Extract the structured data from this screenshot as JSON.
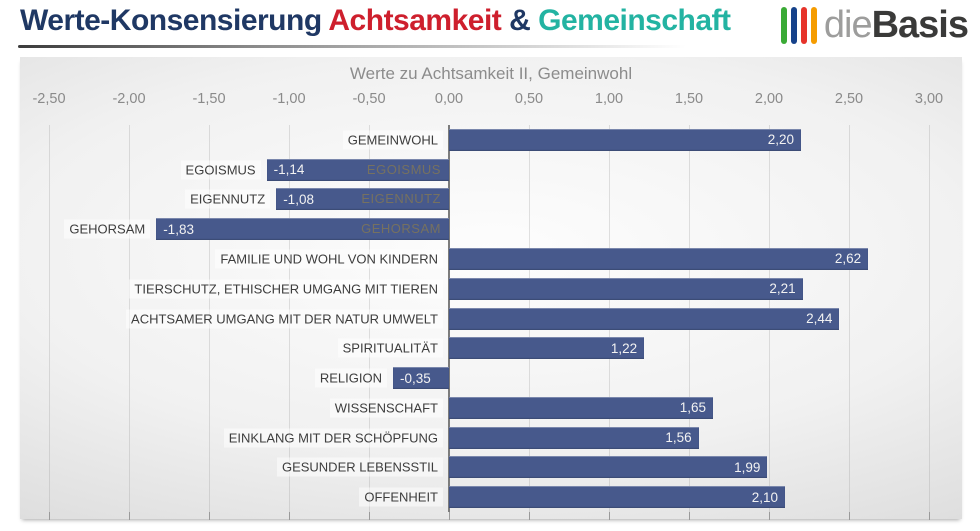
{
  "header": {
    "title_parts": [
      {
        "text": "Werte-Konsensierung ",
        "color": "#1f3864"
      },
      {
        "text": "Achtsamkeit",
        "color": "#ce1f2d"
      },
      {
        "text": " & ",
        "color": "#1f3864"
      },
      {
        "text": "Gemeinschaft",
        "color": "#23b3a2"
      }
    ],
    "logo": {
      "prefix": "die",
      "suffix": "Basis",
      "bar_colors": [
        "#3aaa35",
        "#16428a",
        "#e6332a",
        "#f59c00"
      ]
    }
  },
  "chart_data": {
    "type": "bar",
    "orientation": "horizontal",
    "title": "Werte zu Achtsamkeit II, Gemeinwohl",
    "xlabel": "",
    "ylabel": "",
    "xlim": [
      -2.68,
      3.2
    ],
    "grid": true,
    "legend": false,
    "bar_color": "#47598c",
    "value_text_color": "#f2f2f2",
    "ghost_text_color": "#767160",
    "x_ticks": [
      {
        "v": -2.5,
        "label": "-2,50"
      },
      {
        "v": -2.0,
        "label": "-2,00"
      },
      {
        "v": -1.5,
        "label": "-1,50"
      },
      {
        "v": -1.0,
        "label": "-1,00"
      },
      {
        "v": -0.5,
        "label": "-0,50"
      },
      {
        "v": 0.0,
        "label": "0,00"
      },
      {
        "v": 0.5,
        "label": "0,50"
      },
      {
        "v": 1.0,
        "label": "1,00"
      },
      {
        "v": 1.5,
        "label": "1,50"
      },
      {
        "v": 2.0,
        "label": "2,00"
      },
      {
        "v": 2.5,
        "label": "2,50"
      },
      {
        "v": 3.0,
        "label": "3,00"
      }
    ],
    "rows": [
      {
        "category": "GEMEINWOHL",
        "value": 2.2,
        "display": "2,20",
        "ghost": false
      },
      {
        "category": "EGOISMUS",
        "value": -1.14,
        "display": "-1,14",
        "ghost": true
      },
      {
        "category": "EIGENNUTZ",
        "value": -1.08,
        "display": "-1,08",
        "ghost": true
      },
      {
        "category": "GEHORSAM",
        "value": -1.83,
        "display": "-1,83",
        "ghost": true
      },
      {
        "category": "FAMILIE UND WOHL VON KINDERN",
        "value": 2.62,
        "display": "2,62",
        "ghost": false
      },
      {
        "category": "TIERSCHUTZ, ETHISCHER UMGANG MIT TIEREN",
        "value": 2.21,
        "display": "2,21",
        "ghost": false
      },
      {
        "category": "ACHTSAMER UMGANG MIT DER NATUR UMWELT",
        "value": 2.44,
        "display": "2,44",
        "ghost": false
      },
      {
        "category": "SPIRITUALITÄT",
        "value": 1.22,
        "display": "1,22",
        "ghost": false
      },
      {
        "category": "RELIGION",
        "value": -0.35,
        "display": "-0,35",
        "ghost": false
      },
      {
        "category": "WISSENSCHAFT",
        "value": 1.65,
        "display": "1,65",
        "ghost": false
      },
      {
        "category": "EINKLANG MIT DER SCHÖPFUNG",
        "value": 1.56,
        "display": "1,56",
        "ghost": false
      },
      {
        "category": "GESUNDER LEBENSSTIL",
        "value": 1.99,
        "display": "1,99",
        "ghost": false
      },
      {
        "category": "OFFENHEIT",
        "value": 2.1,
        "display": "2,10",
        "ghost": false
      }
    ]
  }
}
